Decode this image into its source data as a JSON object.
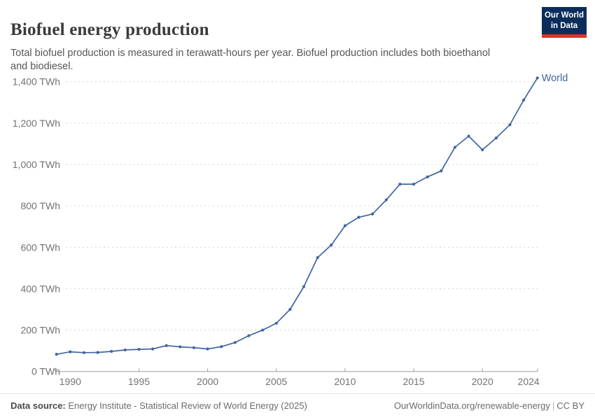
{
  "header": {
    "title": "Biofuel energy production",
    "subtitle": "Total biofuel production is measured in terawatt-hours per year. Biofuel production includes both bioethanol and biodiesel.",
    "logo": {
      "line1": "Our World",
      "line2": "in Data",
      "bg_color": "#0b2d5b",
      "accent_color": "#dc3528",
      "text_color": "#ffffff"
    }
  },
  "chart_data": {
    "type": "line",
    "title": "Biofuel energy production",
    "unit": "TWh",
    "xlim": [
      1989,
      2024
    ],
    "ylim": [
      0,
      1400
    ],
    "grid": "horizontal-dashed",
    "legend_position": "end-of-line-label",
    "series": [
      {
        "name": "World",
        "color": "#4165a3",
        "x": [
          1989,
          1990,
          1991,
          1992,
          1993,
          1994,
          1995,
          1996,
          1997,
          1998,
          1999,
          2000,
          2001,
          2002,
          2003,
          2004,
          2005,
          2006,
          2007,
          2008,
          2009,
          2010,
          2011,
          2012,
          2013,
          2014,
          2015,
          2016,
          2017,
          2018,
          2019,
          2020,
          2021,
          2022,
          2023,
          2024
        ],
        "values": [
          83,
          95,
          91,
          92,
          97,
          104,
          107,
          109,
          125,
          119,
          115,
          109,
          120,
          140,
          173,
          200,
          233,
          300,
          410,
          550,
          611,
          704,
          745,
          761,
          829,
          905,
          905,
          940,
          969,
          1083,
          1137,
          1071,
          1128,
          1192,
          1311,
          1418
        ]
      }
    ],
    "x_ticks": {
      "values": [
        1990,
        1995,
        2000,
        2005,
        2010,
        2015,
        2020,
        2024
      ],
      "labels": [
        "1990",
        "1995",
        "2000",
        "2005",
        "2010",
        "2015",
        "2020",
        "2024"
      ]
    },
    "y_ticks": {
      "values": [
        0,
        200,
        400,
        600,
        800,
        1000,
        1200,
        1400
      ],
      "labels": [
        "0 TWh",
        "200 TWh",
        "400 TWh",
        "600 TWh",
        "800 TWh",
        "1,000 TWh",
        "1,200 TWh",
        "1,400 TWh"
      ]
    },
    "colors": {
      "line": "#4165a3",
      "grid": "#d4d4d4",
      "axis": "#9e9e9e",
      "tick_text": "#737373"
    }
  },
  "footer": {
    "datasource_label": "Data source:",
    "datasource_text": " Energy Institute - Statistical Review of World Energy (2025)",
    "link_text": "OurWorldinData.org/renewable-energy",
    "separator": "|",
    "license_text": "CC BY"
  }
}
